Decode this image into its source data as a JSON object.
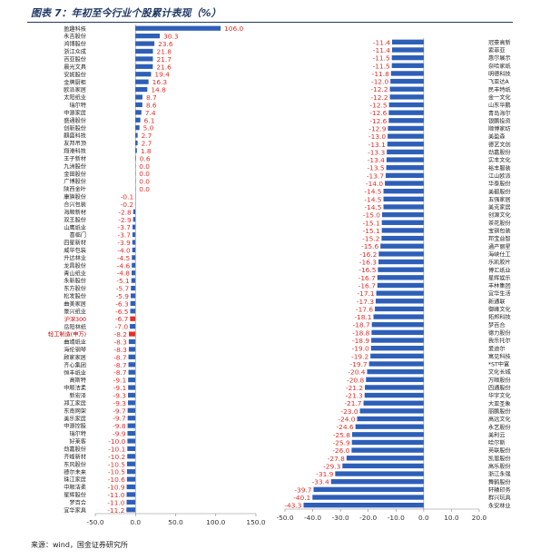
{
  "title": "图表 7：年初至今行业个股累计表现（%）",
  "source": "来源：wind，国金证券研究所",
  "colors": {
    "positive": "#2e5fb8",
    "negative": "#2e5fb8",
    "highlight": "#e0302a",
    "value_label": "#e0302a",
    "highlight_label": "#c00000"
  },
  "chart_data": [
    {
      "type": "bar",
      "orientation": "horizontal",
      "categories": [
        "盈趣科技",
        "永吉股份",
        "鸿博股份",
        "浙江众成",
        "百亚股份",
        "晨光文具",
        "安妮股份",
        "金牌厨柜",
        "欧派家居",
        "太阳纸业",
        "瑞尔特",
        "中源家居",
        "盛通股份",
        "创新股份",
        "麒盛科技",
        "友邦吊顶",
        "翔港科技",
        "王子新材",
        "九洲股份",
        "金田股份",
        "广博股份",
        "陕西金叶",
        "康旗股份",
        "合兴包装",
        "海顺新材",
        "双王股份",
        "山鹰纸业",
        "喜临门",
        "四星新材",
        "威华包装",
        "升达林业",
        "龙昌股份",
        "青山纸业",
        "永新股份",
        "东方股份",
        "松发股份",
        "曲美家居",
        "景兴纸业",
        "沪深300",
        "岳阳林纸",
        "轻工制造(申万)",
        "曲靖纸业",
        "海伦钢琴",
        "顾家家居",
        "齐心集团",
        "恒丰纸业",
        "高斯特",
        "中顺洁柔",
        "新宏泽",
        "郑工家居",
        "东南网架",
        "美乐家居",
        "中源控股",
        "瑞尔特",
        "好莱客",
        "劲嘉股份",
        "齐峰新材",
        "东风股份",
        "德尔未来",
        "珠江家居",
        "中顺洁柔",
        "星辉股份",
        "梦百合",
        "宜华家具"
      ],
      "values": [
        106.0,
        30.3,
        23.6,
        21.8,
        21.7,
        21.6,
        19.4,
        16.3,
        14.8,
        8.7,
        8.6,
        7.4,
        6.1,
        5.0,
        2.7,
        2.7,
        1.8,
        0.6,
        0.0,
        0.0,
        0.0,
        0.0,
        -0.1,
        -0.2,
        -2.8,
        -2.9,
        -3.7,
        -3.7,
        -3.9,
        -4.0,
        -4.5,
        -4.6,
        -4.8,
        -5.1,
        -5.7,
        -5.9,
        -6.3,
        -6.5,
        -6.7,
        -7.0,
        -8.2,
        -8.3,
        -8.3,
        -8.7,
        -8.7,
        -8.7,
        -9.1,
        -9.1,
        -9.3,
        -9.3,
        -9.7,
        -9.7,
        -9.8,
        -9.9,
        -10.0,
        -10.1,
        -10.2,
        -10.5,
        -10.5,
        -10.6,
        -10.9,
        -11.0,
        -11.0,
        -11.2
      ],
      "highlight_categories": [
        "沪深300",
        "轻工制造(申万)"
      ],
      "xlim": [
        -50,
        150
      ],
      "xticks": [
        -50.0,
        0.0,
        50.0,
        100.0,
        150.0
      ],
      "tick_labels": [
        "-50.0",
        "0.0",
        "50.0",
        "100.0",
        "150.0"
      ]
    },
    {
      "type": "bar",
      "orientation": "horizontal",
      "categories": [
        "冠豪高新",
        "索菲亚",
        "惠尔展示",
        "奈哈家纸",
        "明德科技",
        "飞亚达A",
        "民丰特纸",
        "金一文化",
        "山东华鹏",
        "青岛海尔",
        "银鹏投资",
        "顺博家纺",
        "美盈森",
        "德艺文创",
        "劲嘉股份",
        "实丰文化",
        "裕丰服装",
        "江山欧派",
        "华泰股份",
        "美都股份",
        "五强家居",
        "美克家居",
        "创源文化",
        "茶花股份",
        "宝钢包装",
        "邦宝益智",
        "通产丽星",
        "海峡仕工",
        "乐凯胶片",
        "博汇纸业",
        "星辉娱乐",
        "丰林集团",
        "宜华生活",
        "新通联",
        "御峰文化",
        "拓邦科技",
        "梦百合",
        "德力股份",
        "我乐托尔",
        "爱迪尔",
        "寓见科技",
        "*ST中富",
        "文化长城",
        "万顺股份",
        "四通股份",
        "华宇文化",
        "大亚圣象",
        "丽鹏股份",
        "高远文化",
        "永艺股份",
        "美利云",
        "哈尔斯",
        "英联股份",
        "凯恩股份",
        "高乐股份",
        "浙江永强",
        "舞鹤股份",
        "轩辕印务",
        "群兴玩具",
        "永安林业"
      ],
      "values": [
        -11.4,
        -11.4,
        -11.5,
        -11.5,
        -11.8,
        -12.0,
        -12.2,
        -12.2,
        -12.5,
        -12.6,
        -12.6,
        -12.9,
        -13.0,
        -13.1,
        -13.3,
        -13.4,
        -13.5,
        -13.7,
        -14.0,
        -14.5,
        -14.5,
        -14.5,
        -15.0,
        -15.1,
        -15.1,
        -15.2,
        -15.6,
        -16.2,
        -16.3,
        -16.5,
        -16.7,
        -16.7,
        -17.1,
        -17.3,
        -17.6,
        -18.1,
        -18.7,
        -18.8,
        -18.9,
        -19.0,
        -19.2,
        -19.7,
        -20.4,
        -20.8,
        -21.2,
        -21.3,
        -21.7,
        -23.0,
        -24.0,
        -24.6,
        -25.8,
        -25.9,
        -26.0,
        -27.8,
        -29.3,
        -31.9,
        -33.4,
        -39.7,
        -40.1,
        -43.3
      ],
      "xlim": [
        -50,
        20
      ],
      "xticks": [
        -50.0,
        -40.0,
        -30.0,
        -20.0,
        -10.0,
        0.0,
        10.0,
        20.0
      ],
      "tick_labels": [
        "-50.0",
        "-40.0",
        "-30.0",
        "-20.0",
        "-10.0",
        "0.0",
        "10.0",
        "20.0"
      ]
    }
  ]
}
